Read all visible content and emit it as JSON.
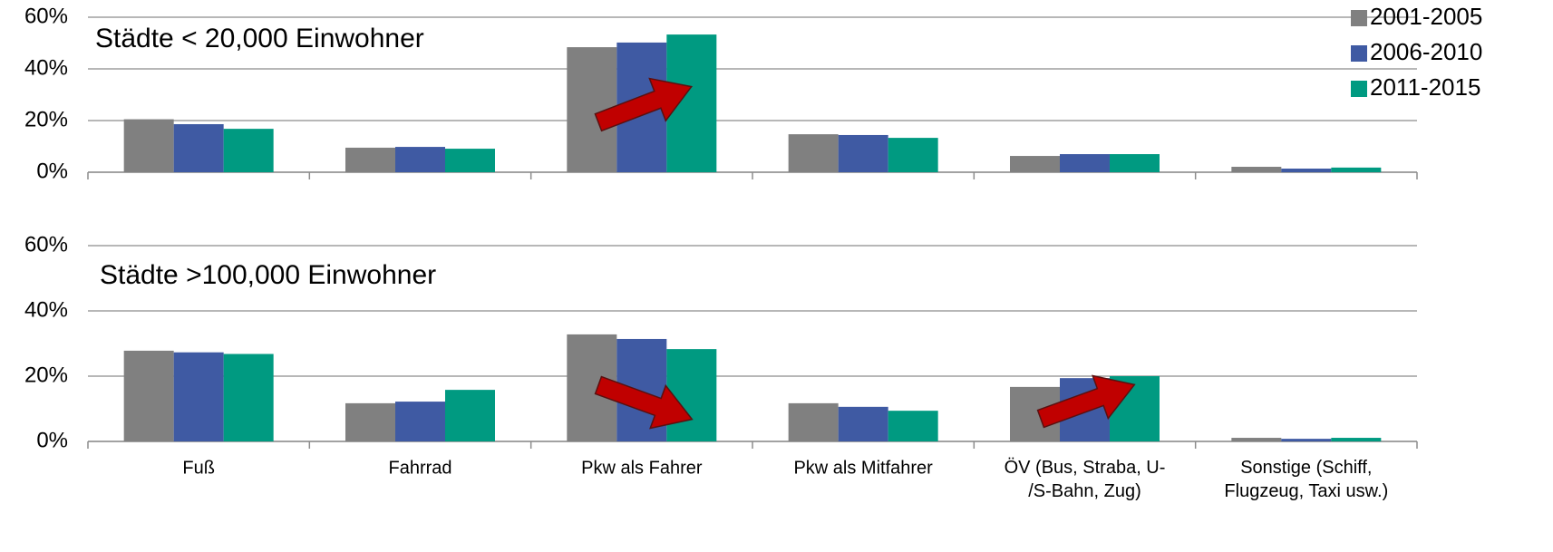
{
  "chart_data": [
    {
      "type": "bar",
      "annotation": "Städte < 20,000 Einwohner",
      "categories": [
        null,
        null,
        null,
        null,
        null,
        null
      ],
      "series": [
        {
          "name": "2001-2005",
          "color": "#808080",
          "values": [
            20.5,
            9.5,
            48.4,
            14.7,
            6.3,
            2.1
          ]
        },
        {
          "name": "2006-2010",
          "color": "#3f5aa3",
          "values": [
            18.6,
            9.8,
            50.2,
            14.4,
            7.0,
            1.4
          ]
        },
        {
          "name": "2011-2015",
          "color": "#009a81",
          "values": [
            16.8,
            9.1,
            53.3,
            13.3,
            7.0,
            1.8
          ]
        }
      ],
      "ylim": [
        0,
        60
      ],
      "yticks": [
        {
          "value": 0,
          "label": "0%"
        },
        {
          "value": 20,
          "label": "20%"
        },
        {
          "value": 40,
          "label": "40%"
        },
        {
          "value": 60,
          "label": "60%"
        }
      ],
      "grid": true,
      "legend": "upper right"
    },
    {
      "type": "bar",
      "annotation": "Städte >100,000 Einwohner",
      "categories": [
        "Fuß",
        "Fahrrad",
        "Pkw als Fahrer",
        "Pkw als Mitfahrer",
        "ÖV (Bus, Straba, U-\n/S-Bahn, Zug)",
        "Sonstige (Schiff,\nFlugzeug, Taxi usw.)"
      ],
      "series": [
        {
          "color": "#808080",
          "values": [
            27.8,
            11.7,
            32.8,
            11.7,
            16.7,
            1.1
          ]
        },
        {
          "color": "#3f5aa3",
          "values": [
            27.3,
            12.2,
            31.4,
            10.6,
            19.4,
            0.8
          ]
        },
        {
          "color": "#009a81",
          "values": [
            26.8,
            15.8,
            28.3,
            9.4,
            20.0,
            1.1
          ]
        }
      ],
      "ylim": [
        0,
        60
      ],
      "yticks": [
        {
          "value": 0,
          "label": "0%"
        },
        {
          "value": 20,
          "label": "20%"
        },
        {
          "value": 40,
          "label": "40%"
        },
        {
          "value": 60,
          "label": "60%"
        }
      ],
      "grid": true
    }
  ]
}
